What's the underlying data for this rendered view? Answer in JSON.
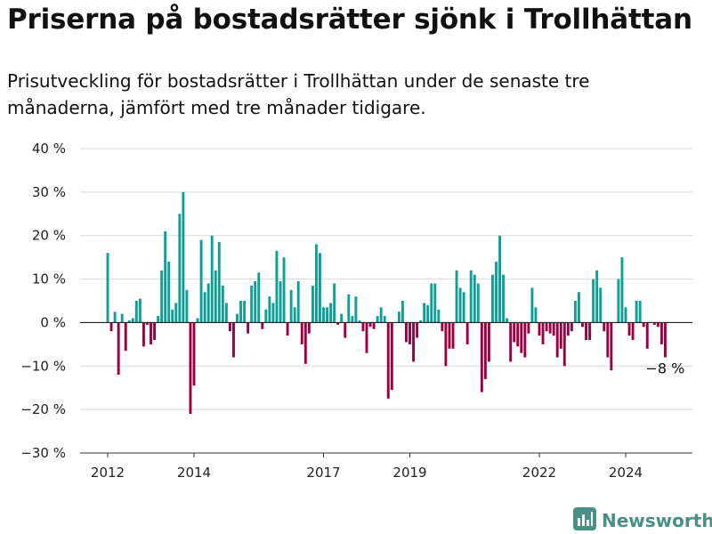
{
  "title": "Priserna på bostadsrätter sjönk i Trollhättan",
  "subtitle": "Prisutveckling för bostadsrätter i Trollhättan under de senaste tre månaderna, jämfört med tre månader tidigare.",
  "brand": {
    "name": "Newsworthy",
    "icon": "newsworthy-logo-icon"
  },
  "colors": {
    "positive": "#0e9f96",
    "negative": "#9b0041",
    "grid": "#d9d9d9",
    "axis": "#333333"
  },
  "chart_data": {
    "type": "bar",
    "title": "Priserna på bostadsrätter sjönk i Trollhättan",
    "xlabel": "",
    "ylabel": "",
    "ylim": [
      -30,
      40
    ],
    "yticks": [
      -30,
      -20,
      -10,
      0,
      10,
      20,
      30,
      40
    ],
    "ytick_labels": [
      "−30 %",
      "−20 %",
      "−10 %",
      "0 %",
      "10 %",
      "20 %",
      "30 %",
      "40 %"
    ],
    "xticks": [
      2012,
      2014,
      2017,
      2019,
      2022,
      2024
    ],
    "grid": "horizontal",
    "legend": "none",
    "last_value_label": "−8 %",
    "start_year": 2012.0,
    "values": [
      16,
      -2,
      2.5,
      -12,
      2,
      -6.5,
      0.5,
      1,
      5,
      5.5,
      -5.5,
      -0.5,
      -5,
      -4,
      1.5,
      12,
      21,
      14,
      3,
      4.5,
      25,
      30,
      7.5,
      -21,
      -14.5,
      1,
      19,
      7,
      9,
      20,
      12,
      18.5,
      8.5,
      4.5,
      -2,
      -8,
      2,
      5,
      5,
      -2.5,
      8.5,
      9.5,
      11.5,
      -1.5,
      3,
      6,
      4.5,
      16.5,
      9.5,
      15,
      -3,
      7.5,
      3.5,
      9.5,
      -5,
      -9.5,
      -2.5,
      8.5,
      18,
      16,
      3.5,
      3.5,
      4.5,
      9,
      -0.5,
      2,
      -3.5,
      6.5,
      1.5,
      6,
      0.5,
      -2,
      -7,
      -1,
      -1.5,
      1.5,
      3.5,
      1.5,
      -17.5,
      -15.5,
      0,
      2.5,
      5,
      -4.5,
      -5,
      -9,
      -3.5,
      0.5,
      4.5,
      4,
      9,
      9,
      3,
      -2,
      -10,
      -6,
      -6,
      12,
      8,
      7,
      -5,
      12,
      11,
      9,
      -16,
      -13,
      -9,
      11,
      14,
      20,
      11,
      1,
      -9,
      -4.5,
      -5.5,
      -7,
      -8,
      -2.5,
      8,
      3.5,
      -3,
      -5,
      -2,
      -2.5,
      -3,
      -8,
      -6,
      -10,
      -3,
      -2,
      5,
      7,
      -1,
      -4,
      -4,
      10,
      12,
      8,
      -2,
      -8,
      -11,
      0,
      10,
      15,
      3.5,
      -3,
      -4,
      5,
      5,
      -1,
      -6,
      0,
      -0.5,
      -1,
      -5,
      -8
    ]
  }
}
